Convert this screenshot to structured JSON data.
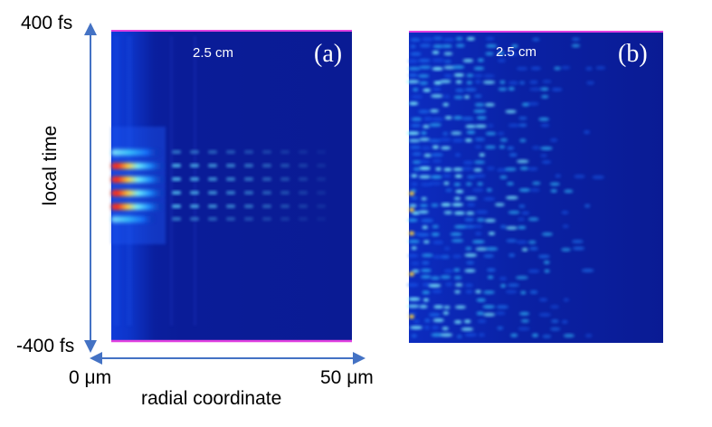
{
  "figure": {
    "y_axis": {
      "label": "local time",
      "top_tick": "400 fs",
      "bottom_tick": "-400 fs"
    },
    "x_axis": {
      "label": "radial coordinate",
      "left_tick": "0 μm",
      "right_tick": "50 μm"
    },
    "panels": [
      {
        "id": "a",
        "label": "(a)",
        "distance": "2.5 cm"
      },
      {
        "id": "b",
        "label": "(b)",
        "distance": "2.5 cm"
      }
    ],
    "colors": {
      "arrow": "#4472c4",
      "background": "#0a1c98",
      "edge_line": "#e040e0"
    }
  }
}
